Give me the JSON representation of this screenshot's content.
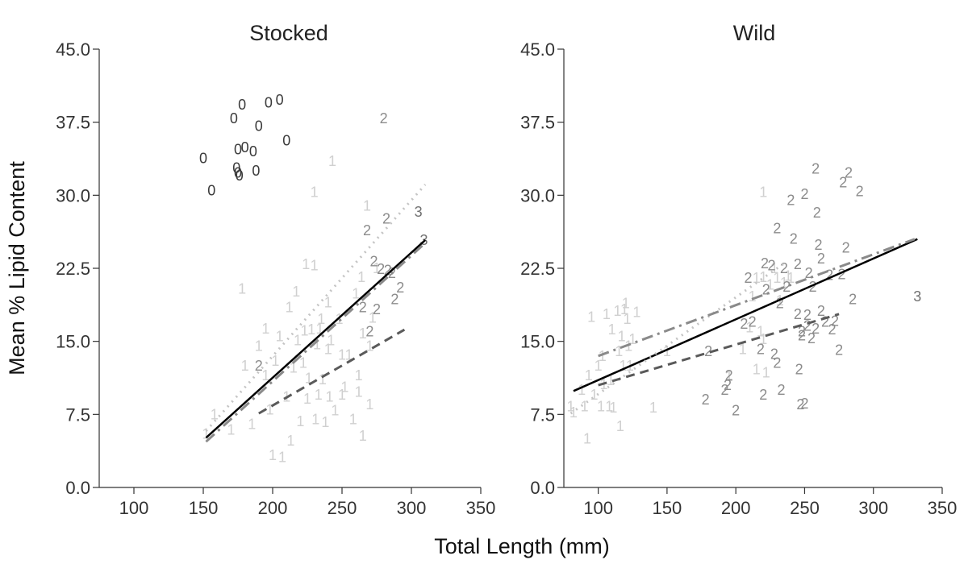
{
  "chart_data": {
    "type": "scatter",
    "xlabel": "Total Length (mm)",
    "ylabel": "Mean % Lipid Content",
    "xlim": [
      75,
      350
    ],
    "ylim": [
      0,
      45
    ],
    "xticks": [
      "100",
      "150",
      "200",
      "250",
      "300",
      "350"
    ],
    "yticks": [
      "0.0",
      "7.5",
      "15.0",
      "22.5",
      "30.0",
      "37.5",
      "45.0"
    ],
    "grid": false,
    "colors": {
      "0": "#3a3a3a",
      "1": "#d0d0d0",
      "2": "#8c8c8c",
      "3": "#707070",
      "overall": "#000000",
      "line1": "#c4c4c4",
      "line2": "#8a8a8a",
      "line3": "#5a5a5a"
    },
    "panels": [
      {
        "title": "Stocked",
        "groups": [
          {
            "label": "0",
            "points": [
              [
                150,
                33.8
              ],
              [
                156,
                30.5
              ],
              [
                172,
                37.9
              ],
              [
                174,
                32.8
              ],
              [
                175,
                34.7
              ],
              [
                175,
                32.3
              ],
              [
                176,
                32.0
              ],
              [
                178,
                39.3
              ],
              [
                180,
                34.9
              ],
              [
                186,
                34.5
              ],
              [
                188,
                32.5
              ],
              [
                190,
                37.1
              ],
              [
                197,
                39.5
              ],
              [
                205,
                39.8
              ],
              [
                210,
                35.6
              ]
            ]
          },
          {
            "label": "1",
            "points": [
              [
                152,
                5.5
              ],
              [
                158,
                7.5
              ],
              [
                170,
                5.9
              ],
              [
                180,
                12.5
              ],
              [
                185,
                6.5
              ],
              [
                190,
                14.5
              ],
              [
                195,
                11.5
              ],
              [
                198,
                8.0
              ],
              [
                200,
                3.3
              ],
              [
                202,
                13.0
              ],
              [
                205,
                15.5
              ],
              [
                207,
                3.1
              ],
              [
                210,
                9.3
              ],
              [
                212,
                18.5
              ],
              [
                213,
                4.8
              ],
              [
                215,
                12.3
              ],
              [
                217,
                20.1
              ],
              [
                218,
                15.1
              ],
              [
                220,
                6.8
              ],
              [
                222,
                12.8
              ],
              [
                223,
                16.1
              ],
              [
                224,
                22.9
              ],
              [
                225,
                9.1
              ],
              [
                226,
                11.2
              ],
              [
                228,
                16.2
              ],
              [
                230,
                22.8
              ],
              [
                231,
                7.0
              ],
              [
                232,
                14.7
              ],
              [
                233,
                9.5
              ],
              [
                234,
                16.3
              ],
              [
                235,
                17.3
              ],
              [
                236,
                11.1
              ],
              [
                238,
                6.7
              ],
              [
                240,
                19.0
              ],
              [
                241,
                9.3
              ],
              [
                242,
                15.1
              ],
              [
                243,
                33.5
              ],
              [
                245,
                7.9
              ],
              [
                248,
                17.3
              ],
              [
                250,
                13.6
              ],
              [
                252,
                10.3
              ],
              [
                255,
                13.6
              ],
              [
                258,
                7.0
              ],
              [
                260,
                19.9
              ],
              [
                262,
                11.5
              ],
              [
                264,
                21.6
              ],
              [
                265,
                15.8
              ],
              [
                268,
                28.9
              ],
              [
                270,
                14.5
              ],
              [
                272,
                17.4
              ],
              [
                275,
                22.5
              ],
              [
                178,
                20.4
              ],
              [
                195,
                16.3
              ],
              [
                230,
                30.3
              ],
              [
                240,
                14.2
              ],
              [
                250,
                9.5
              ],
              [
                262,
                9.8
              ],
              [
                265,
                5.3
              ],
              [
                270,
                8.5
              ]
            ]
          },
          {
            "label": "2",
            "points": [
              [
                190,
                12.5
              ],
              [
                265,
                18.5
              ],
              [
                268,
                26.4
              ],
              [
                270,
                16.0
              ],
              [
                273,
                23.2
              ],
              [
                275,
                18.3
              ],
              [
                278,
                22.4
              ],
              [
                280,
                37.9
              ],
              [
                282,
                27.6
              ],
              [
                283,
                22.3
              ],
              [
                286,
                22.0
              ],
              [
                288,
                19.3
              ],
              [
                292,
                20.5
              ]
            ]
          },
          {
            "label": "3",
            "points": [
              [
                305,
                28.3
              ],
              [
                309,
                25.4
              ]
            ]
          }
        ],
        "fits": [
          {
            "key": "overall",
            "x": [
              152,
              310
            ],
            "y": [
              5.1,
              25.4
            ]
          },
          {
            "key": "line1",
            "x": [
              152,
              310
            ],
            "y": [
              5.8,
              31.1
            ]
          },
          {
            "key": "line2",
            "x": [
              152,
              310
            ],
            "y": [
              4.7,
              25.1
            ]
          },
          {
            "key": "line3",
            "x": [
              190,
              295
            ],
            "y": [
              7.6,
              16.2
            ]
          }
        ]
      },
      {
        "title": "Wild",
        "groups": [
          {
            "label": "1",
            "points": [
              [
                80,
                8.3
              ],
              [
                82,
                7.7
              ],
              [
                88,
                10.0
              ],
              [
                90,
                8.3
              ],
              [
                92,
                5.0
              ],
              [
                93,
                11.5
              ],
              [
                95,
                17.5
              ],
              [
                97,
                9.5
              ],
              [
                100,
                12.5
              ],
              [
                102,
                8.3
              ],
              [
                103,
                13.5
              ],
              [
                104,
                10.6
              ],
              [
                106,
                17.8
              ],
              [
                108,
                8.3
              ],
              [
                109,
                11.0
              ],
              [
                110,
                16.2
              ],
              [
                111,
                8.2
              ],
              [
                114,
                18.1
              ],
              [
                115,
                14.0
              ],
              [
                116,
                6.3
              ],
              [
                117,
                15.5
              ],
              [
                118,
                12.5
              ],
              [
                119,
                18.3
              ],
              [
                120,
                18.9
              ],
              [
                121,
                17.3
              ],
              [
                122,
                14.5
              ],
              [
                123,
                12.5
              ],
              [
                125,
                15.2
              ],
              [
                128,
                18.0
              ],
              [
                140,
                8.2
              ],
              [
                150,
                14.0
              ],
              [
                220,
                30.3
              ],
              [
                195,
                11.4
              ],
              [
                205,
                14.2
              ],
              [
                210,
                16.4
              ],
              [
                212,
                19.6
              ],
              [
                215,
                21.5
              ],
              [
                220,
                21.6
              ],
              [
                225,
                20.8
              ],
              [
                228,
                22.5
              ],
              [
                230,
                21.5
              ],
              [
                232,
                19.2
              ],
              [
                235,
                21.0
              ],
              [
                238,
                21.7
              ],
              [
                240,
                21.5
              ],
              [
                215,
                12.1
              ],
              [
                218,
                16.0
              ],
              [
                220,
                15.2
              ],
              [
                222,
                11.8
              ]
            ]
          },
          {
            "label": "2",
            "points": [
              [
                178,
                9.0
              ],
              [
                180,
                14.0
              ],
              [
                192,
                10.0
              ],
              [
                194,
                10.5
              ],
              [
                195,
                11.5
              ],
              [
                206,
                16.8
              ],
              [
                209,
                21.5
              ],
              [
                212,
                17.0
              ],
              [
                218,
                14.2
              ],
              [
                220,
                9.5
              ],
              [
                221,
                23.0
              ],
              [
                222,
                20.3
              ],
              [
                226,
                22.8
              ],
              [
                228,
                13.7
              ],
              [
                230,
                26.6
              ],
              [
                232,
                18.9
              ],
              [
                233,
                10.0
              ],
              [
                235,
                22.5
              ],
              [
                237,
                20.6
              ],
              [
                240,
                29.5
              ],
              [
                242,
                25.5
              ],
              [
                245,
                17.8
              ],
              [
                246,
                12.1
              ],
              [
                247,
                8.5
              ],
              [
                248,
                15.6
              ],
              [
                250,
                30.1
              ],
              [
                252,
                17.7
              ],
              [
                253,
                22.0
              ],
              [
                255,
                15.3
              ],
              [
                256,
                20.6
              ],
              [
                258,
                32.7
              ],
              [
                259,
                28.2
              ],
              [
                260,
                24.9
              ],
              [
                262,
                18.1
              ],
              [
                265,
                17.0
              ],
              [
                268,
                21.8
              ],
              [
                270,
                16.2
              ],
              [
                272,
                17.1
              ],
              [
                275,
                14.1
              ],
              [
                277,
                21.9
              ],
              [
                278,
                31.3
              ],
              [
                280,
                24.6
              ],
              [
                282,
                32.3
              ],
              [
                285,
                19.3
              ],
              [
                290,
                30.4
              ],
              [
                200,
                7.9
              ],
              [
                250,
                8.6
              ],
              [
                252,
                16.6
              ],
              [
                258,
                16.3
              ],
              [
                245,
                22.9
              ],
              [
                262,
                23.5
              ],
              [
                248,
                16.0
              ],
              [
                230,
                12.8
              ]
            ]
          },
          {
            "label": "3",
            "points": [
              [
                332,
                19.6
              ]
            ]
          }
        ],
        "fits": [
          {
            "key": "overall",
            "x": [
              82,
              332
            ],
            "y": [
              9.9,
              25.5
            ]
          },
          {
            "key": "line1",
            "x": [
              80,
              235
            ],
            "y": [
              7.6,
              23.0
            ]
          },
          {
            "key": "line2",
            "x": [
              100,
              330
            ],
            "y": [
              13.5,
              25.5
            ]
          },
          {
            "key": "line3",
            "x": [
              100,
              275
            ],
            "y": [
              10.5,
              17.8
            ]
          }
        ]
      }
    ]
  }
}
